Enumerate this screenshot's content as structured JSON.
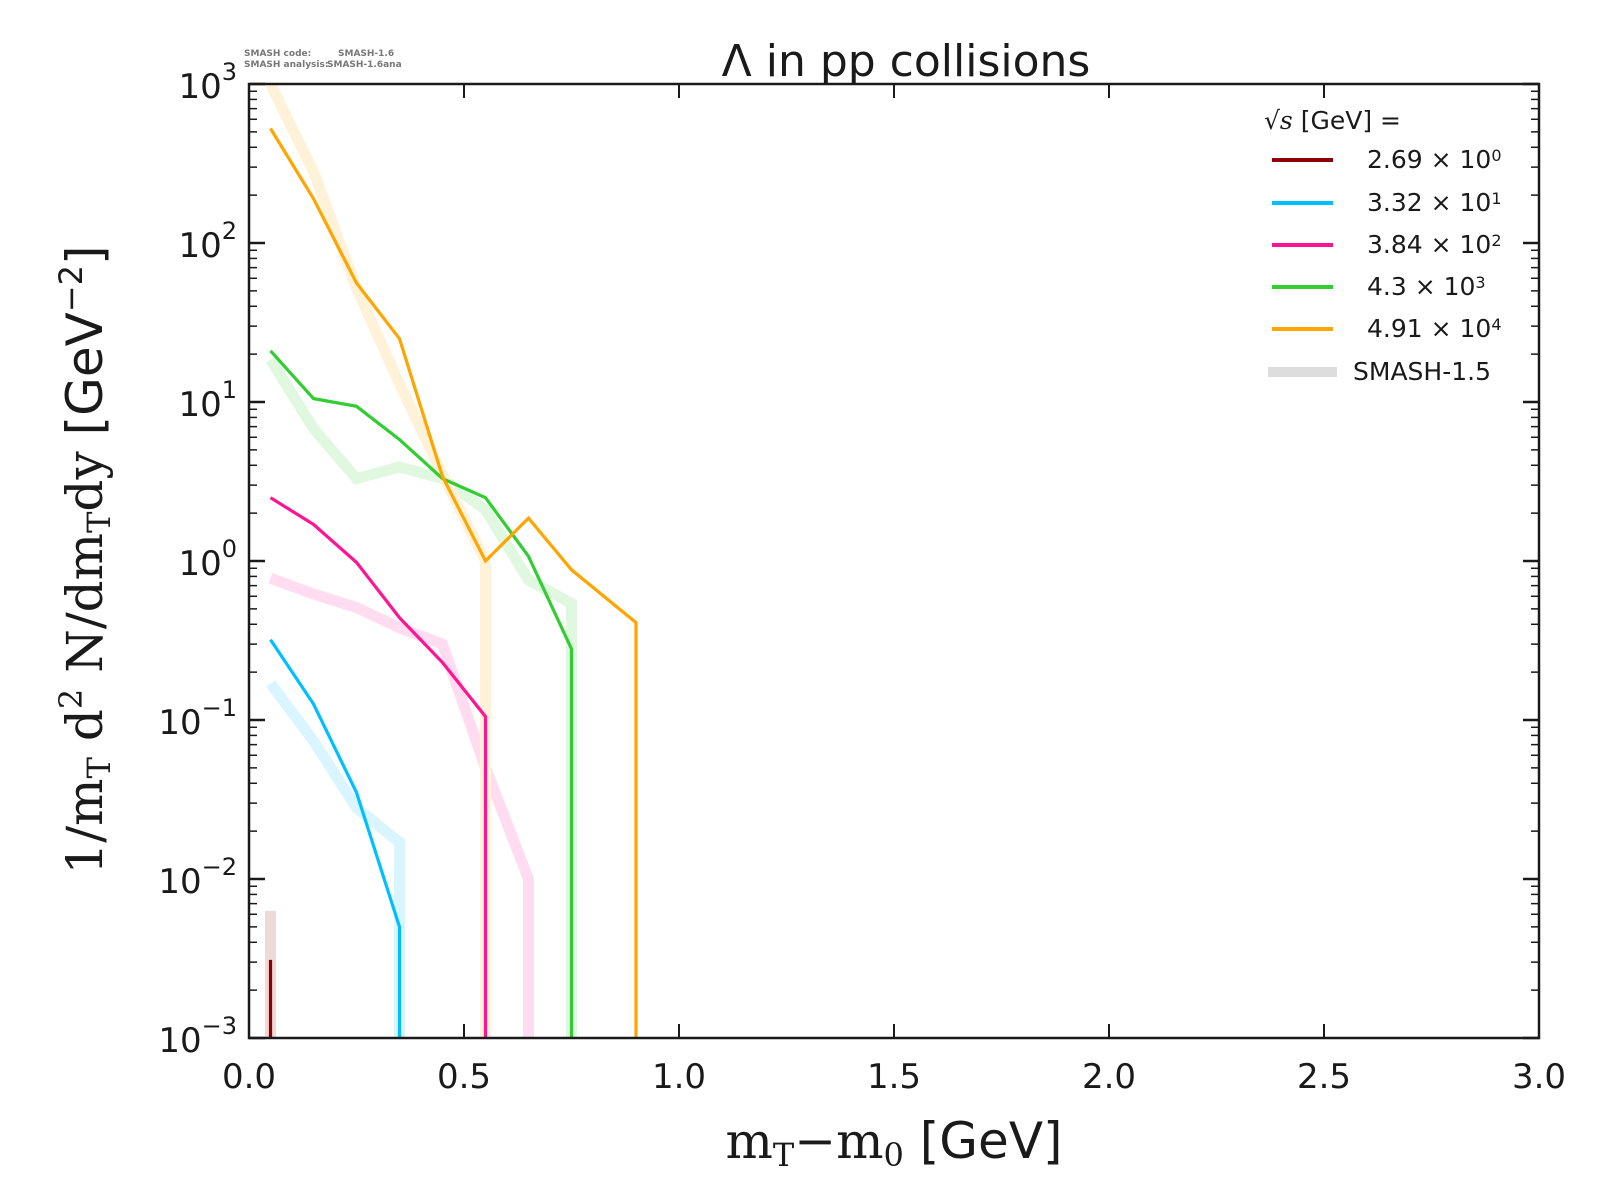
{
  "chart_data": {
    "type": "line",
    "title": "Λ in pp collisions",
    "xlabel": "m_T − m_0 [GeV]",
    "ylabel": "1/m_T d^2 N/dm_T dy [GeV^-2]",
    "xlabel_parts": {
      "m1": "m",
      "sub1": "T",
      "minus": "−",
      "m2": "m",
      "sub2": "0",
      "unit": " [GeV]"
    },
    "ylabel_parts": {
      "p1": "1/m",
      "sub1": "T",
      "p2": " d",
      "sup1": "2",
      "p3": " N/dm",
      "sub2": "T",
      "p4": "dy ",
      "unit": "[GeV",
      "sup2": "−2",
      "close": "]"
    },
    "xlim": [
      0.0,
      3.0
    ],
    "ylim": [
      0.001,
      1000
    ],
    "yscale": "log",
    "x_ticks": [
      "0.0",
      "0.5",
      "1.0",
      "1.5",
      "2.0",
      "2.5",
      "3.0"
    ],
    "x_tick_values": [
      0.0,
      0.5,
      1.0,
      1.5,
      2.0,
      2.5,
      3.0
    ],
    "y_ticks": [
      {
        "exp": -3,
        "base": "10",
        "sup": "−3"
      },
      {
        "exp": -2,
        "base": "10",
        "sup": "−2"
      },
      {
        "exp": -1,
        "base": "10",
        "sup": "−1"
      },
      {
        "exp": 0,
        "base": "10",
        "sup": "0"
      },
      {
        "exp": 1,
        "base": "10",
        "sup": "1"
      },
      {
        "exp": 2,
        "base": "10",
        "sup": "2"
      },
      {
        "exp": 3,
        "base": "10",
        "sup": "3"
      }
    ],
    "grid": false,
    "legend": {
      "placement": "top-right",
      "title_sqrt": "√s",
      "title_rest": " [GeV] =",
      "entries": [
        {
          "mantissa": "2.69",
          "times": " × 10",
          "exp": "0",
          "color": "#8b0000"
        },
        {
          "mantissa": "3.32",
          "times": " × 10",
          "exp": "1",
          "color": "#00bfff"
        },
        {
          "mantissa": "3.84",
          "times": " × 10",
          "exp": "2",
          "color": "#ff1493"
        },
        {
          "mantissa": "4.3",
          "times": " × 10",
          "exp": "3",
          "color": "#32cd32"
        },
        {
          "mantissa": "4.91",
          "times": " × 10",
          "exp": "4",
          "color": "#ffa500"
        },
        {
          "label": "SMASH-1.5",
          "color": "#dddddd"
        }
      ]
    },
    "version_info": {
      "line1_label": "SMASH code:",
      "line1_value": "SMASH-1.6",
      "line2_label": "SMASH analysis:",
      "line2_value": "SMASH-1.6ana"
    },
    "series": [
      {
        "name": "2.69 × 10^0 (SMASH-1.5)",
        "color": "#8b0000",
        "reference": true,
        "x": [
          0.05,
          0.05
        ],
        "y": [
          0.00063,
          0.0063
        ]
      },
      {
        "name": "3.32 × 10^1 (SMASH-1.5)",
        "color": "#00bfff",
        "reference": true,
        "x": [
          0.05,
          0.15,
          0.25,
          0.35,
          0.35
        ],
        "y": [
          0.17,
          0.074,
          0.028,
          0.017,
          0.00063
        ]
      },
      {
        "name": "3.84 × 10^2 (SMASH-1.5)",
        "color": "#ff1493",
        "reference": true,
        "x": [
          0.05,
          0.15,
          0.25,
          0.35,
          0.45,
          0.55,
          0.65,
          0.65
        ],
        "y": [
          0.78,
          0.62,
          0.51,
          0.38,
          0.3,
          0.05,
          0.01,
          0.00063
        ]
      },
      {
        "name": "4.3 × 10^3 (SMASH-1.5)",
        "color": "#32cd32",
        "reference": true,
        "x": [
          0.05,
          0.15,
          0.25,
          0.35,
          0.45,
          0.55,
          0.65,
          0.75,
          0.75
        ],
        "y": [
          18.5,
          6.8,
          3.3,
          3.9,
          3.3,
          2.1,
          0.76,
          0.54,
          0.00063
        ]
      },
      {
        "name": "4.91 × 10^4 (SMASH-1.5)",
        "color": "#ffa500",
        "reference": true,
        "x": [
          0.02,
          0.05,
          0.15,
          0.25,
          0.35,
          0.45,
          0.55,
          0.55
        ],
        "y": [
          1600,
          1000,
          280,
          52,
          13,
          3.5,
          1.0,
          0.00063
        ]
      },
      {
        "name": "2.69 × 10^0",
        "color": "#8b0000",
        "x": [
          0.05,
          0.05
        ],
        "y": [
          0.00063,
          0.0031
        ]
      },
      {
        "name": "3.32 × 10^1",
        "color": "#00bfff",
        "x": [
          0.05,
          0.15,
          0.25,
          0.35,
          0.35
        ],
        "y": [
          0.32,
          0.126,
          0.035,
          0.005,
          0.00063
        ]
      },
      {
        "name": "3.84 × 10^2",
        "color": "#ff1493",
        "x": [
          0.05,
          0.15,
          0.25,
          0.35,
          0.45,
          0.55,
          0.55
        ],
        "y": [
          2.5,
          1.7,
          0.98,
          0.44,
          0.23,
          0.105,
          0.00063
        ]
      },
      {
        "name": "4.3 × 10^3",
        "color": "#32cd32",
        "x": [
          0.05,
          0.15,
          0.25,
          0.35,
          0.45,
          0.55,
          0.65,
          0.75,
          0.75
        ],
        "y": [
          21,
          10.5,
          9.4,
          5.8,
          3.3,
          2.5,
          1.07,
          0.28,
          0.00063
        ]
      },
      {
        "name": "4.91 × 10^4",
        "color": "#ffa500",
        "x": [
          0.05,
          0.15,
          0.25,
          0.35,
          0.45,
          0.55,
          0.65,
          0.75,
          0.9,
          0.9
        ],
        "y": [
          525,
          190,
          56,
          25,
          3.4,
          1.0,
          1.86,
          0.88,
          0.41,
          0.00063
        ]
      }
    ]
  }
}
